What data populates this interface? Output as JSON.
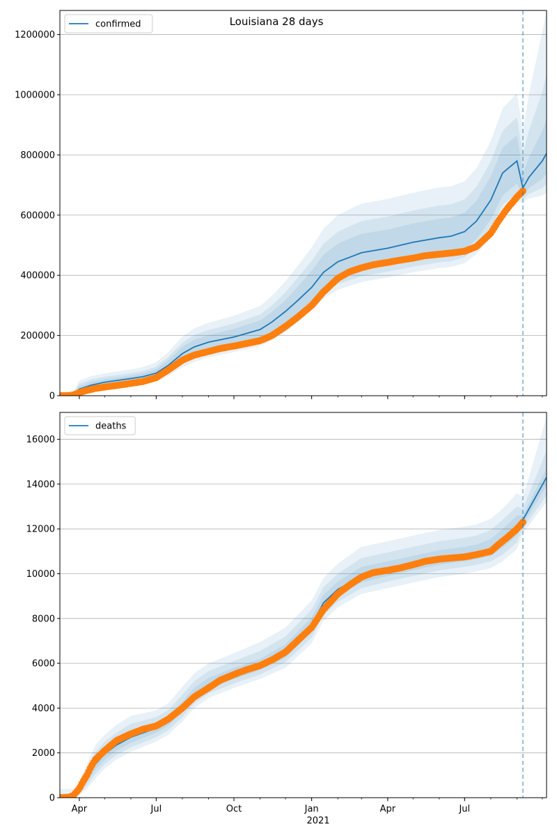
{
  "figure": {
    "title": "Louisiana 28 days"
  },
  "x_axis": {
    "ticks": [
      {
        "label": "Apr",
        "date": "2020-04-01"
      },
      {
        "label": "Jul",
        "date": "2020-07-01"
      },
      {
        "label": "Oct",
        "date": "2020-10-01"
      },
      {
        "label": "Jan",
        "date": "2021-01-01"
      },
      {
        "label": "Apr",
        "date": "2021-04-01"
      },
      {
        "label": "Jul",
        "date": "2021-07-01"
      }
    ],
    "year_label": "2021",
    "range": [
      "2020-03-09",
      "2021-10-06"
    ]
  },
  "colors": {
    "model": "#1f77b4",
    "observed": "#ff7f0e",
    "band": "#1f77b4",
    "grid": "#b0b0b0"
  },
  "chart_data": [
    {
      "type": "line",
      "legend": {
        "label": "confirmed",
        "placement": "top-left"
      },
      "ylim": [
        0,
        1280000
      ],
      "y_ticks": [
        {
          "label": "0",
          "value": 0
        },
        {
          "label": "200000",
          "value": 200000
        },
        {
          "label": "400000",
          "value": 400000
        },
        {
          "label": "600000",
          "value": 600000
        },
        {
          "label": "800000",
          "value": 800000
        },
        {
          "label": "1000000",
          "value": 1000000
        },
        {
          "label": "1200000",
          "value": 1200000
        }
      ],
      "grid": "horizontal",
      "forecast_start": "2021-09-08",
      "model": {
        "x": [
          "2020-03-09",
          "2020-03-25",
          "2020-04-01",
          "2020-04-15",
          "2020-05-01",
          "2020-06-01",
          "2020-06-15",
          "2020-07-01",
          "2020-07-15",
          "2020-08-01",
          "2020-08-15",
          "2020-09-01",
          "2020-10-01",
          "2020-11-01",
          "2020-11-15",
          "2020-12-01",
          "2020-12-15",
          "2021-01-01",
          "2021-01-15",
          "2021-02-01",
          "2021-02-15",
          "2021-03-01",
          "2021-04-01",
          "2021-05-01",
          "2021-06-01",
          "2021-06-15",
          "2021-07-01",
          "2021-07-15",
          "2021-08-01",
          "2021-08-15",
          "2021-09-01",
          "2021-09-08",
          "2021-09-15",
          "2021-10-01",
          "2021-10-06"
        ],
        "y": [
          2000,
          4000,
          22000,
          35000,
          45000,
          57000,
          63000,
          75000,
          100000,
          140000,
          162000,
          178000,
          195000,
          220000,
          245000,
          280000,
          315000,
          360000,
          410000,
          445000,
          460000,
          475000,
          490000,
          510000,
          525000,
          530000,
          545000,
          580000,
          650000,
          740000,
          780000,
          690000,
          725000,
          780000,
          805000
        ],
        "bands": [
          {
            "lower": [
              1000,
              2500,
              13000,
              27000,
              37000,
              48000,
              53000,
              64000,
              83000,
              118000,
              137000,
              153000,
              168000,
              188000,
              210000,
              240000,
              272000,
              315000,
              360000,
              392000,
              405000,
              418000,
              432000,
              450000,
              465000,
              470000,
              485000,
              520000,
              585000,
              665000,
              705000,
              665000,
              690000,
              720000,
              740000
            ],
            "upper": [
              3500,
              7000,
              32000,
              46000,
              55000,
              67000,
              74000,
              88000,
              117000,
              162000,
              186000,
              202000,
              222000,
              250000,
              278000,
              318000,
              360000,
              415000,
              468000,
              505000,
              522000,
              538000,
              552000,
              572000,
              588000,
              592000,
              608000,
              648000,
              728000,
              825000,
              865000,
              740000,
              790000,
              880000,
              920000
            ]
          },
          {
            "lower": [
              700,
              1800,
              9000,
              22000,
              31000,
              42000,
              47000,
              57000,
              74000,
              106000,
              124000,
              140000,
              156000,
              176000,
              197000,
              225000,
              256000,
              298000,
              341000,
              371000,
              384000,
              397000,
              412000,
              429000,
              443000,
              447000,
              460000,
              494000,
              556000,
              633000,
              672000,
              653000,
              670000,
              690000,
              705000
            ],
            "upper": [
              4500,
              9000,
              40000,
              54000,
              63000,
              75000,
              82000,
              97000,
              128000,
              176000,
              202000,
              218000,
              240000,
              270000,
              300000,
              344000,
              390000,
              448000,
              505000,
              545000,
              563000,
              580000,
              595000,
              615000,
              632000,
              636000,
              652000,
              694000,
              779000,
              880000,
              925000,
              800000,
              880000,
              1010000,
              1070000
            ]
          },
          {
            "lower": [
              500,
              1200,
              6000,
              18000,
              26000,
              37000,
              42000,
              51000,
              66000,
              95000,
              112000,
              128000,
              145000,
              165000,
              185000,
              212000,
              242000,
              282000,
              323000,
              352000,
              365000,
              378000,
              393000,
              410000,
              424000,
              428000,
              440000,
              470000,
              530000,
              605000,
              642000,
              642000,
              655000,
              665000,
              675000
            ],
            "upper": [
              6000,
              12000,
              50000,
              65000,
              74000,
              87000,
              95000,
              111000,
              144000,
              196000,
              224000,
              242000,
              266000,
              298000,
              332000,
              380000,
              430000,
              492000,
              555000,
              600000,
              620000,
              638000,
              654000,
              674000,
              692000,
              696000,
              712000,
              756000,
              846000,
              955000,
              1005000,
              880000,
              1000000,
              1210000,
              1280000
            ]
          }
        ]
      },
      "observed": {
        "x": [
          "2020-03-09",
          "2020-03-20",
          "2020-03-25",
          "2020-04-01",
          "2020-04-10",
          "2020-04-20",
          "2020-05-01",
          "2020-05-15",
          "2020-06-01",
          "2020-06-15",
          "2020-07-01",
          "2020-07-15",
          "2020-08-01",
          "2020-08-15",
          "2020-09-01",
          "2020-09-15",
          "2020-10-01",
          "2020-10-15",
          "2020-11-01",
          "2020-11-15",
          "2020-12-01",
          "2020-12-15",
          "2021-01-01",
          "2021-01-15",
          "2021-02-01",
          "2021-02-15",
          "2021-03-01",
          "2021-03-15",
          "2021-04-01",
          "2021-04-15",
          "2021-05-01",
          "2021-05-15",
          "2021-06-01",
          "2021-06-15",
          "2021-07-01",
          "2021-07-15",
          "2021-08-01",
          "2021-08-10",
          "2021-08-20",
          "2021-09-01",
          "2021-09-08"
        ],
        "y": [
          0,
          500,
          2500,
          10000,
          18000,
          24000,
          29000,
          34000,
          41000,
          47000,
          60000,
          85000,
          118000,
          135000,
          147000,
          157000,
          165000,
          173000,
          183000,
          200000,
          230000,
          260000,
          300000,
          345000,
          390000,
          412000,
          425000,
          435000,
          443000,
          450000,
          457000,
          465000,
          470000,
          474000,
          480000,
          495000,
          540000,
          580000,
          620000,
          660000,
          680000
        ]
      }
    },
    {
      "type": "line",
      "legend": {
        "label": "deaths",
        "placement": "top-left"
      },
      "ylim": [
        0,
        17200
      ],
      "y_ticks": [
        {
          "label": "0",
          "value": 0
        },
        {
          "label": "2000",
          "value": 2000
        },
        {
          "label": "4000",
          "value": 4000
        },
        {
          "label": "6000",
          "value": 6000
        },
        {
          "label": "8000",
          "value": 8000
        },
        {
          "label": "10000",
          "value": 10000
        },
        {
          "label": "12000",
          "value": 12000
        },
        {
          "label": "14000",
          "value": 14000
        },
        {
          "label": "16000",
          "value": 16000
        }
      ],
      "grid": "horizontal",
      "forecast_start": "2021-09-08",
      "model": {
        "x": [
          "2020-03-09",
          "2020-03-25",
          "2020-04-01",
          "2020-04-10",
          "2020-04-20",
          "2020-05-01",
          "2020-05-15",
          "2020-06-01",
          "2020-07-01",
          "2020-07-15",
          "2020-08-01",
          "2020-08-15",
          "2020-09-01",
          "2020-10-01",
          "2020-11-01",
          "2020-12-01",
          "2021-01-01",
          "2021-01-15",
          "2021-02-01",
          "2021-03-01",
          "2021-04-01",
          "2021-05-01",
          "2021-06-01",
          "2021-07-01",
          "2021-07-15",
          "2021-08-01",
          "2021-08-15",
          "2021-09-01",
          "2021-09-08",
          "2021-10-06"
        ],
        "y": [
          30,
          80,
          350,
          900,
          1500,
          1950,
          2350,
          2700,
          3100,
          3400,
          4000,
          4600,
          5050,
          5500,
          5900,
          6500,
          7700,
          8700,
          9300,
          9900,
          10150,
          10400,
          10650,
          10800,
          10900,
          11100,
          11500,
          12100,
          12400,
          14300
        ],
        "bands": [
          {
            "lower": [
              20,
              60,
              250,
              700,
              1250,
              1700,
              2100,
              2450,
              2900,
              3200,
              3800,
              4400,
              4850,
              5300,
              5700,
              6250,
              7400,
              8400,
              9000,
              9600,
              9900,
              10150,
              10400,
              10550,
              10650,
              10800,
              11150,
              11700,
              12200,
              13900
            ],
            "upper": [
              60,
              130,
              450,
              1100,
              1800,
              2250,
              2650,
              3000,
              3350,
              3650,
              4300,
              4900,
              5350,
              5800,
              6200,
              6850,
              8050,
              9050,
              9650,
              10300,
              10550,
              10800,
              11050,
              11200,
              11300,
              11550,
              12000,
              12600,
              12600,
              14700
            ]
          },
          {
            "lower": [
              10,
              40,
              180,
              550,
              1050,
              1500,
              1900,
              2250,
              2700,
              3000,
              3600,
              4200,
              4650,
              5100,
              5500,
              6050,
              7150,
              8150,
              8750,
              9350,
              9650,
              9900,
              10150,
              10300,
              10400,
              10550,
              10850,
              11400,
              12000,
              13500
            ],
            "upper": [
              120,
              220,
              550,
              1300,
              2050,
              2500,
              2900,
              3300,
              3600,
              3900,
              4600,
              5200,
              5650,
              6100,
              6550,
              7200,
              8400,
              9400,
              10000,
              10700,
              10950,
              11200,
              11450,
              11600,
              11700,
              11950,
              12400,
              13000,
              12900,
              15500
            ]
          },
          {
            "lower": [
              0,
              20,
              100,
              400,
              850,
              1300,
              1700,
              2050,
              2500,
              2800,
              3400,
              4000,
              4450,
              4900,
              5300,
              5800,
              6900,
              7900,
              8500,
              9100,
              9350,
              9600,
              9850,
              10000,
              10100,
              10250,
              10550,
              11100,
              11800,
              13200
            ],
            "upper": [
              380,
              400,
              700,
              1500,
              2350,
              2800,
              3250,
              3650,
              3900,
              4200,
              4950,
              5550,
              6000,
              6450,
              6950,
              7600,
              8800,
              9800,
              10450,
              11200,
              11450,
              11700,
              11950,
              12100,
              12200,
              12450,
              12900,
              13600,
              13400,
              17000
            ]
          }
        ]
      },
      "observed": {
        "x": [
          "2020-03-09",
          "2020-03-20",
          "2020-03-25",
          "2020-04-01",
          "2020-04-05",
          "2020-04-10",
          "2020-04-15",
          "2020-04-20",
          "2020-05-01",
          "2020-05-15",
          "2020-06-01",
          "2020-06-15",
          "2020-07-01",
          "2020-07-15",
          "2020-08-01",
          "2020-08-15",
          "2020-09-01",
          "2020-09-15",
          "2020-10-01",
          "2020-10-15",
          "2020-11-01",
          "2020-11-15",
          "2020-12-01",
          "2020-12-15",
          "2021-01-01",
          "2021-01-15",
          "2021-02-01",
          "2021-02-15",
          "2021-03-01",
          "2021-03-15",
          "2021-04-01",
          "2021-04-15",
          "2021-05-01",
          "2021-05-15",
          "2021-06-01",
          "2021-06-15",
          "2021-07-01",
          "2021-07-15",
          "2021-08-01",
          "2021-08-10",
          "2021-08-20",
          "2021-09-01",
          "2021-09-08"
        ],
        "y": [
          0,
          20,
          100,
          400,
          700,
          1000,
          1400,
          1700,
          2100,
          2550,
          2850,
          3050,
          3200,
          3500,
          4000,
          4500,
          4900,
          5250,
          5500,
          5700,
          5900,
          6150,
          6500,
          7000,
          7600,
          8400,
          9100,
          9500,
          9850,
          10050,
          10150,
          10250,
          10400,
          10550,
          10650,
          10700,
          10750,
          10850,
          11000,
          11300,
          11600,
          12000,
          12300
        ]
      }
    }
  ]
}
